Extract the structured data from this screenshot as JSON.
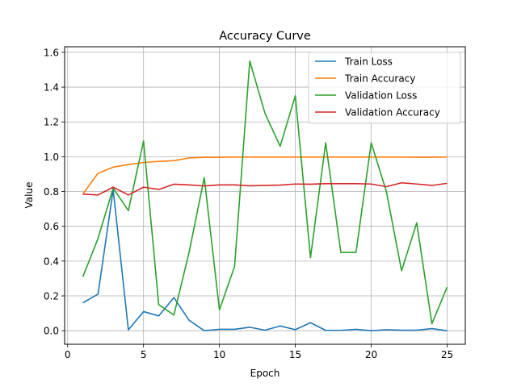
{
  "chart_data": {
    "type": "line",
    "title": "Accuracy Curve",
    "xlabel": "Epoch",
    "ylabel": "Value",
    "xlim": [
      -0.2,
      26.2
    ],
    "ylim": [
      -0.078,
      1.632
    ],
    "xticks": [
      0,
      5,
      10,
      15,
      20,
      25
    ],
    "yticks": [
      0.0,
      0.2,
      0.4,
      0.6,
      0.8,
      1.0,
      1.2,
      1.4,
      1.6
    ],
    "ytick_labels": [
      "0.0",
      "0.2",
      "0.4",
      "0.6",
      "0.8",
      "1.0",
      "1.2",
      "1.4",
      "1.6"
    ],
    "grid": true,
    "legend_position": "top-right",
    "x": [
      1,
      2,
      3,
      4,
      5,
      6,
      7,
      8,
      9,
      10,
      11,
      12,
      13,
      14,
      15,
      16,
      17,
      18,
      19,
      20,
      21,
      22,
      23,
      24,
      25
    ],
    "series": [
      {
        "name": "Train Loss",
        "color": "#1f77b4",
        "values": [
          0.16,
          0.21,
          0.81,
          0.005,
          0.11,
          0.085,
          0.19,
          0.06,
          0.0,
          0.008,
          0.008,
          0.02,
          0.003,
          0.027,
          0.006,
          0.046,
          0.002,
          0.002,
          0.008,
          0.0,
          0.006,
          0.003,
          0.003,
          0.012,
          0.0
        ]
      },
      {
        "name": "Train Accuracy",
        "color": "#ff7f0e",
        "values": [
          0.785,
          0.905,
          0.94,
          0.955,
          0.967,
          0.973,
          0.977,
          0.993,
          0.996,
          0.997,
          0.998,
          0.998,
          0.998,
          0.998,
          0.998,
          0.998,
          0.998,
          0.998,
          0.998,
          0.998,
          0.998,
          0.998,
          0.997,
          0.997,
          0.998
        ]
      },
      {
        "name": "Validation Loss",
        "color": "#2ca02c",
        "values": [
          0.31,
          0.53,
          0.82,
          0.69,
          1.09,
          0.15,
          0.09,
          0.45,
          0.88,
          0.12,
          0.37,
          1.55,
          1.25,
          1.06,
          1.35,
          0.42,
          1.08,
          0.45,
          0.45,
          1.08,
          0.8,
          0.345,
          0.62,
          0.04,
          0.25
        ]
      },
      {
        "name": "Validation Accuracy",
        "color": "#d62728",
        "values": [
          0.785,
          0.78,
          0.825,
          0.78,
          0.825,
          0.812,
          0.842,
          0.838,
          0.832,
          0.838,
          0.838,
          0.833,
          0.835,
          0.837,
          0.843,
          0.842,
          0.845,
          0.845,
          0.845,
          0.843,
          0.828,
          0.85,
          0.843,
          0.835,
          0.847
        ]
      }
    ]
  }
}
